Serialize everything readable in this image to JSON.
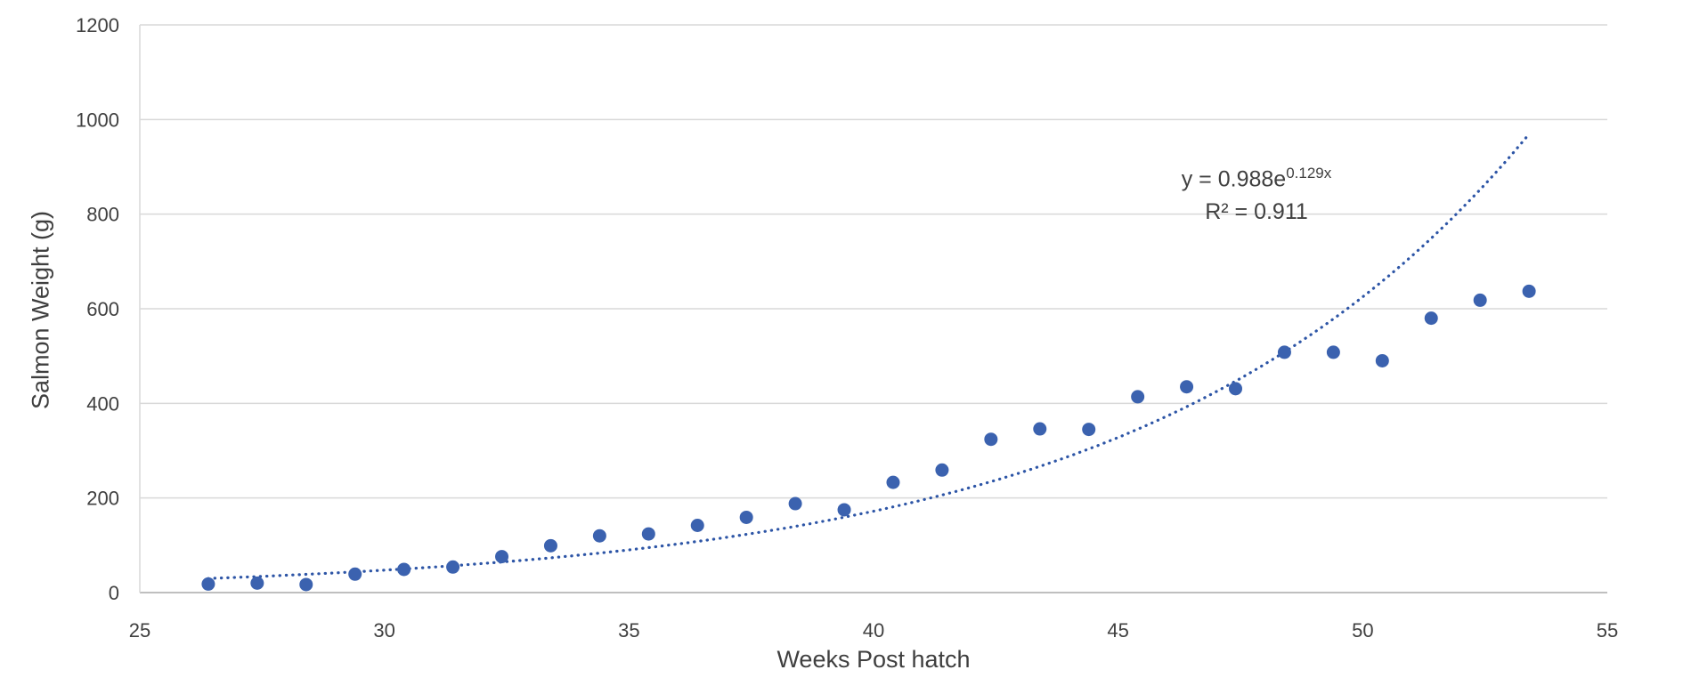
{
  "chart_data": {
    "type": "scatter",
    "title": "",
    "xlabel": "Weeks Post hatch",
    "ylabel": "Salmon Weight (g)",
    "xlim": [
      25,
      55
    ],
    "ylim": [
      0,
      1200
    ],
    "x_ticks": [
      25,
      30,
      35,
      40,
      45,
      50,
      55
    ],
    "y_ticks": [
      0,
      200,
      400,
      600,
      800,
      1000,
      1200
    ],
    "grid": "horizontal",
    "legend": "none",
    "series": [
      {
        "name": "Salmon Weight",
        "points": [
          [
            26.4,
            18
          ],
          [
            27.4,
            20
          ],
          [
            28.4,
            17
          ],
          [
            29.4,
            39
          ],
          [
            30.4,
            49
          ],
          [
            31.4,
            54
          ],
          [
            32.4,
            76
          ],
          [
            33.4,
            99
          ],
          [
            34.4,
            120
          ],
          [
            35.4,
            124
          ],
          [
            36.4,
            142
          ],
          [
            37.4,
            159
          ],
          [
            38.4,
            188
          ],
          [
            39.4,
            175
          ],
          [
            40.4,
            233
          ],
          [
            41.4,
            259
          ],
          [
            42.4,
            324
          ],
          [
            43.4,
            346
          ],
          [
            44.4,
            345
          ],
          [
            45.4,
            414
          ],
          [
            46.4,
            435
          ],
          [
            47.4,
            431
          ],
          [
            48.4,
            508
          ],
          [
            49.4,
            508
          ],
          [
            50.4,
            490
          ],
          [
            51.4,
            580
          ],
          [
            52.4,
            618
          ],
          [
            53.4,
            637
          ]
        ]
      }
    ],
    "trendline": {
      "type": "exponential",
      "a": 0.988,
      "b": 0.129,
      "x_start": 26.4,
      "x_end": 53.4,
      "style": "dotted",
      "equation_prefix": "y = 0.988e",
      "equation_exponent": "0.129x",
      "r_squared": "R² = 0.911"
    },
    "colors": {
      "marker": "#3b62af",
      "trendline": "#2d55a6",
      "gridline": "#d9d9d9",
      "axis_line": "#bfbfbf",
      "tick_text": "#404040",
      "title_text": "#3f3f3f"
    }
  }
}
